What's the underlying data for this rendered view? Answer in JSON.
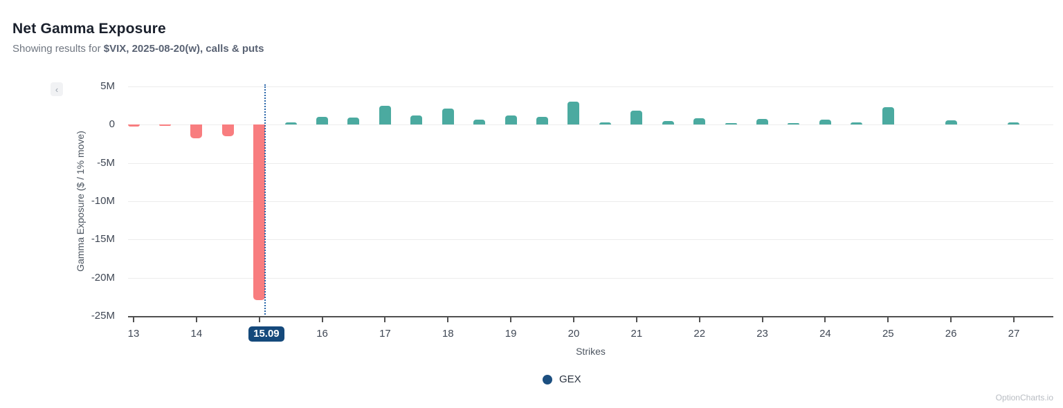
{
  "header": {
    "title": "Net Gamma Exposure",
    "subtitle_prefix": "Showing results for ",
    "subtitle_bold": "$VIX, 2025-08-20(w), calls & puts"
  },
  "controls": {
    "collapse_icon": "‹"
  },
  "chart_data": {
    "type": "bar",
    "title": "Net Gamma Exposure",
    "xlabel": "Strikes",
    "ylabel": "Gamma Exposure ($ / 1% move)",
    "unit": "USD millions",
    "ylim_millions": [
      -25,
      5
    ],
    "grid": "horizontal",
    "x": [
      13,
      13.5,
      14,
      14.5,
      15,
      15.5,
      16,
      16.5,
      17,
      17.5,
      18,
      18.5,
      19,
      19.5,
      20,
      20.5,
      21,
      21.5,
      22,
      22.5,
      23,
      23.5,
      24,
      24.5,
      25,
      25.5,
      26,
      26.5,
      27
    ],
    "gex_millions": [
      -0.2,
      -0.15,
      -1.8,
      -1.5,
      -22.9,
      0.33,
      1.0,
      0.9,
      2.45,
      1.25,
      2.15,
      0.7,
      1.2,
      1.0,
      3.0,
      0.33,
      1.8,
      0.5,
      0.83,
      0.24,
      0.74,
      0.21,
      0.68,
      0.3,
      2.3,
      0,
      0.54,
      0,
      0.27
    ],
    "yticks": [
      {
        "value": 5,
        "label": "5M"
      },
      {
        "value": 0,
        "label": "0"
      },
      {
        "value": -5,
        "label": "-5M"
      },
      {
        "value": -10,
        "label": "-10M"
      },
      {
        "value": -15,
        "label": "-15M"
      },
      {
        "value": -20,
        "label": "-20M"
      },
      {
        "value": -25,
        "label": "-25M"
      }
    ],
    "x_ticks": [
      {
        "value": 13,
        "label": "13"
      },
      {
        "value": 14,
        "label": "14"
      },
      {
        "value": 15,
        "label": ""
      },
      {
        "value": 16,
        "label": "16"
      },
      {
        "value": 17,
        "label": "17"
      },
      {
        "value": 18,
        "label": "18"
      },
      {
        "value": 19,
        "label": "19"
      },
      {
        "value": 20,
        "label": "20"
      },
      {
        "value": 21,
        "label": "21"
      },
      {
        "value": 22,
        "label": "22"
      },
      {
        "value": 23,
        "label": "23"
      },
      {
        "value": 24,
        "label": "24"
      },
      {
        "value": 25,
        "label": "25"
      },
      {
        "value": 26,
        "label": "26"
      },
      {
        "value": 27,
        "label": "27"
      }
    ],
    "spot": {
      "value": 15.09,
      "label": "15.09",
      "replaces_tick": 15
    },
    "legend": [
      {
        "label": "GEX",
        "color": "#1c4f80"
      }
    ],
    "legend_position": "bottom",
    "colors": {
      "positive": "#4baaa0",
      "negative": "#f87d7f",
      "spot_line": "#2563a8",
      "spot_badge_bg": "#15497b",
      "spot_badge_text": "#ffffff",
      "grid": "#ececec",
      "axis": "#4f4f4f"
    }
  },
  "footer": {
    "brand": "OptionCharts.io"
  }
}
